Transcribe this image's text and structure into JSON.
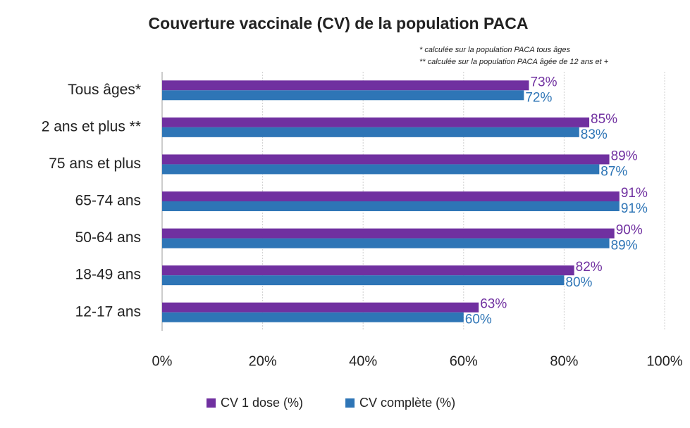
{
  "chart_data": {
    "type": "bar",
    "orientation": "horizontal",
    "title": "Couverture vaccinale (CV) de la population PACA",
    "annotations": [
      "* calculée sur la population PACA tous âges",
      "** calculée sur la population PACA âgée de 12 ans et +"
    ],
    "categories": [
      "Tous âges*",
      "2 ans et plus **",
      "75 ans et plus",
      "65-74 ans",
      "50-64 ans",
      "18-49 ans",
      "12-17 ans"
    ],
    "series": [
      {
        "name": "CV 1 dose (%)",
        "color": "#7030a0",
        "values": [
          73,
          85,
          89,
          91,
          90,
          82,
          63
        ],
        "value_labels": [
          "73%",
          "85%",
          "89%",
          "91%",
          "90%",
          "82%",
          "63%"
        ]
      },
      {
        "name": "CV complète (%)",
        "color": "#2e75b6",
        "values": [
          72,
          83,
          87,
          91,
          89,
          80,
          60
        ],
        "value_labels": [
          "72%",
          "83%",
          "87%",
          "91%",
          "89%",
          "80%",
          "60%"
        ]
      }
    ],
    "xlim": [
      0,
      100
    ],
    "xticks": [
      {
        "value": 0,
        "label": "0%"
      },
      {
        "value": 20,
        "label": "20%"
      },
      {
        "value": 40,
        "label": "40%"
      },
      {
        "value": 60,
        "label": "60%"
      },
      {
        "value": 80,
        "label": "80%"
      },
      {
        "value": 100,
        "label": "100%"
      }
    ],
    "grid": true,
    "legend": "bottom"
  }
}
